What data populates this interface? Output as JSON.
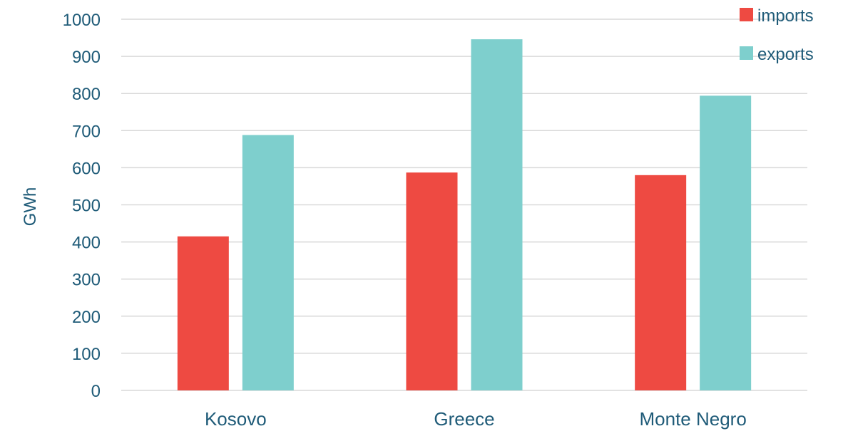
{
  "chart_data": {
    "type": "bar",
    "categories": [
      "Kosovo",
      "Greece",
      "Monte Negro"
    ],
    "series": [
      {
        "name": "imports",
        "values": [
          415,
          587,
          580
        ],
        "color": "#ee4a42"
      },
      {
        "name": "exports",
        "values": [
          688,
          946,
          794
        ],
        "color": "#7ecfcd"
      }
    ],
    "xlabel": "",
    "ylabel": "GWh",
    "ylim": [
      0,
      1000
    ],
    "yticks": [
      0,
      100,
      200,
      300,
      400,
      500,
      600,
      700,
      800,
      900,
      1000
    ],
    "grid": true,
    "legend_position": "top-right"
  }
}
